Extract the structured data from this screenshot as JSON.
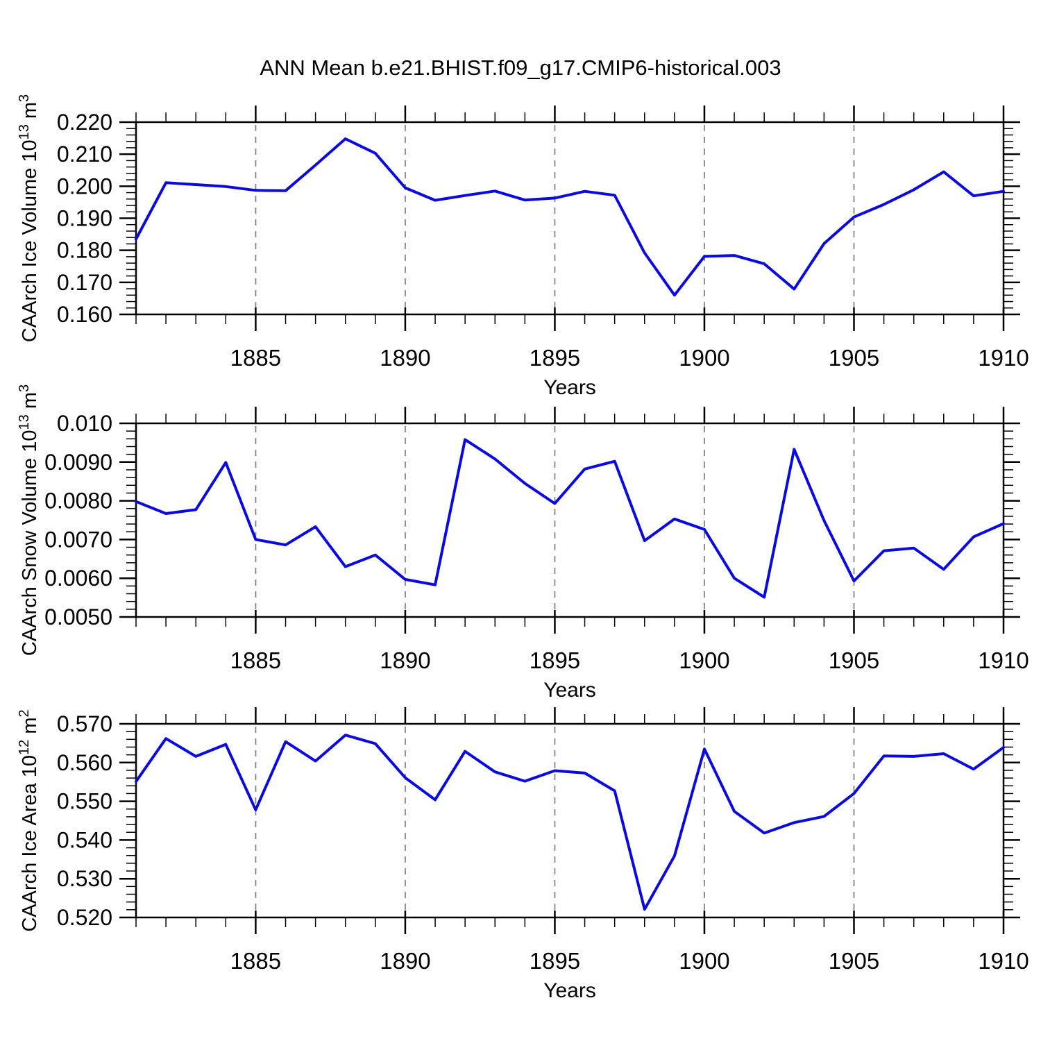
{
  "title": "ANN Mean b.e21.BHIST.f09_g17.CMIP6-historical.003",
  "xlabel": "Years",
  "colors": {
    "line": "#0a0ae0",
    "grid": "#848484",
    "axis": "#000000",
    "background": "#ffffff"
  },
  "x": {
    "start": 1881,
    "end": 1910,
    "years": [
      1881,
      1882,
      1883,
      1884,
      1885,
      1886,
      1887,
      1888,
      1889,
      1890,
      1891,
      1892,
      1893,
      1894,
      1895,
      1896,
      1897,
      1898,
      1899,
      1900,
      1901,
      1902,
      1903,
      1904,
      1905,
      1906,
      1907,
      1908,
      1909,
      1910
    ],
    "major_ticks": [
      1885,
      1890,
      1895,
      1900,
      1905,
      1910
    ],
    "major_tick_labels": [
      "1885",
      "1890",
      "1895",
      "1900",
      "1905",
      "1910"
    ],
    "gridline_years": [
      1885,
      1890,
      1895,
      1900,
      1905
    ]
  },
  "chart_data": [
    {
      "type": "line",
      "name": "ice-volume",
      "ylabel_plain": "CAArch Ice Volume 10^13 m^3",
      "ylabel_segments": [
        {
          "text": "CAArch Ice Volume 10"
        },
        {
          "text": "13",
          "sup": true
        },
        {
          "text": " m"
        },
        {
          "text": "3",
          "sup": true
        }
      ],
      "xlabel": "Years",
      "ylim": [
        0.16,
        0.22
      ],
      "ytick_values": [
        0.22,
        0.21,
        0.2,
        0.19,
        0.18,
        0.17,
        0.16
      ],
      "ytick_labels": [
        "0.220",
        "0.210",
        "0.200",
        "0.190",
        "0.180",
        "0.170",
        "0.160"
      ],
      "y_minor_step": 0.002,
      "values": [
        0.1835,
        0.2011,
        0.2005,
        0.1999,
        0.1987,
        0.1986,
        0.2066,
        0.2148,
        0.2103,
        0.1995,
        0.1956,
        0.1971,
        0.1985,
        0.1957,
        0.1963,
        0.1984,
        0.1972,
        0.1792,
        0.166,
        0.1781,
        0.1784,
        0.1758,
        0.1679,
        0.1821,
        0.1904,
        0.1943,
        0.1989,
        0.2045,
        0.197,
        0.1984
      ]
    },
    {
      "type": "line",
      "name": "snow-volume",
      "ylabel_plain": "CAArch Snow Volume 10^13 m^3",
      "ylabel_segments": [
        {
          "text": "CAArch Snow Volume 10"
        },
        {
          "text": "13",
          "sup": true
        },
        {
          "text": " m"
        },
        {
          "text": "3",
          "sup": true
        }
      ],
      "xlabel": "Years",
      "ylim": [
        0.005,
        0.01
      ],
      "ytick_values": [
        0.01,
        0.009,
        0.008,
        0.007,
        0.006,
        0.005
      ],
      "ytick_labels": [
        "0.010",
        "0.0090",
        "0.0080",
        "0.0070",
        "0.0060",
        "0.0050"
      ],
      "y_minor_step": 0.0002,
      "values": [
        0.00798,
        0.00767,
        0.00777,
        0.00899,
        0.007,
        0.00686,
        0.00733,
        0.0063,
        0.0066,
        0.00597,
        0.00583,
        0.00958,
        0.00908,
        0.00845,
        0.00793,
        0.00882,
        0.00902,
        0.00697,
        0.00753,
        0.00726,
        0.006,
        0.00551,
        0.00933,
        0.00749,
        0.00593,
        0.00671,
        0.00678,
        0.00623,
        0.00707,
        0.00741
      ]
    },
    {
      "type": "line",
      "name": "ice-area",
      "ylabel_plain": "CAArch Ice Area 10^12 m^2",
      "ylabel_segments": [
        {
          "text": "CAArch Ice Area 10"
        },
        {
          "text": "12",
          "sup": true
        },
        {
          "text": " m"
        },
        {
          "text": "2",
          "sup": true
        }
      ],
      "xlabel": "Years",
      "ylim": [
        0.52,
        0.57
      ],
      "ytick_values": [
        0.57,
        0.56,
        0.55,
        0.54,
        0.53,
        0.52
      ],
      "ytick_labels": [
        "0.570",
        "0.560",
        "0.550",
        "0.540",
        "0.530",
        "0.520"
      ],
      "y_minor_step": 0.002,
      "values": [
        0.5551,
        0.5662,
        0.5616,
        0.5647,
        0.5478,
        0.5654,
        0.5604,
        0.5671,
        0.5649,
        0.5561,
        0.5504,
        0.5629,
        0.5576,
        0.5552,
        0.5579,
        0.5573,
        0.5527,
        0.5221,
        0.5359,
        0.5635,
        0.5474,
        0.5418,
        0.5445,
        0.5461,
        0.552,
        0.5617,
        0.5616,
        0.5623,
        0.5583,
        0.5639
      ]
    }
  ]
}
